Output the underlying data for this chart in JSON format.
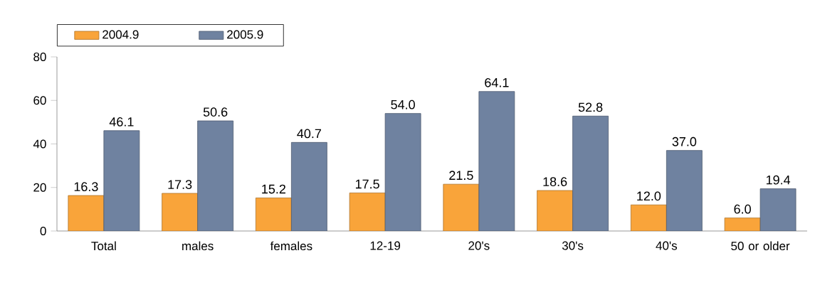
{
  "chart_data": {
    "type": "bar",
    "categories": [
      "Total",
      "males",
      "females",
      "12-19",
      "20's",
      "30's",
      "40's",
      "50 or older"
    ],
    "series": [
      {
        "name": "2004.9",
        "color": "#f9a43a",
        "values": [
          16.3,
          17.3,
          15.2,
          17.5,
          21.5,
          18.6,
          12.0,
          6.0
        ],
        "value_labels": [
          "16.3",
          "17.3",
          "15.2",
          "17.5",
          "21.5",
          "18.6",
          "12.0",
          "6.0"
        ]
      },
      {
        "name": "2005.9",
        "color": "#6f82a0",
        "values": [
          46.1,
          50.6,
          40.7,
          54.0,
          64.1,
          52.8,
          37.0,
          19.4
        ],
        "value_labels": [
          "46.1",
          "50.6",
          "40.7",
          "54.0",
          "64.1",
          "52.8",
          "37.0",
          "19.4"
        ]
      }
    ],
    "ylim": [
      0,
      80
    ],
    "yticks": [
      0,
      20,
      40,
      60,
      80
    ],
    "grid": false,
    "legend": "top left"
  }
}
